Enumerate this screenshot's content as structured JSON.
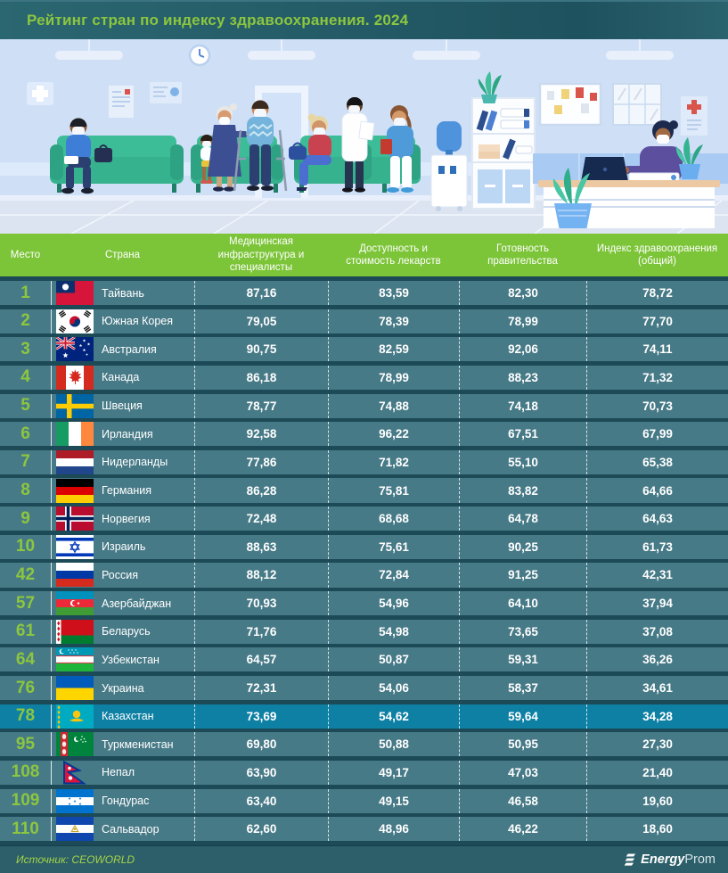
{
  "title": "Рейтинг стран по индексу здравоохранения. 2024",
  "table": {
    "columns": [
      "Место",
      "Страна",
      "Медицинская инфраструктура и специалисты",
      "Доступность и стоимость лекарств",
      "Готовность правительства",
      "Индекс здравоохранения (общий)"
    ],
    "rows": [
      {
        "rank": "1",
        "country": "Тайвань",
        "flag": "taiwan",
        "values": [
          "87,16",
          "83,59",
          "82,30",
          "78,72"
        ],
        "highlighted": false
      },
      {
        "rank": "2",
        "country": "Южная Корея",
        "flag": "south_korea",
        "values": [
          "79,05",
          "78,39",
          "78,99",
          "77,70"
        ],
        "highlighted": false
      },
      {
        "rank": "3",
        "country": "Австралия",
        "flag": "australia",
        "values": [
          "90,75",
          "82,59",
          "92,06",
          "74,11"
        ],
        "highlighted": false
      },
      {
        "rank": "4",
        "country": "Канада",
        "flag": "canada",
        "values": [
          "86,18",
          "78,99",
          "88,23",
          "71,32"
        ],
        "highlighted": false
      },
      {
        "rank": "5",
        "country": "Швеция",
        "flag": "sweden",
        "values": [
          "78,77",
          "74,88",
          "74,18",
          "70,73"
        ],
        "highlighted": false
      },
      {
        "rank": "6",
        "country": "Ирландия",
        "flag": "ireland",
        "values": [
          "92,58",
          "96,22",
          "67,51",
          "67,99"
        ],
        "highlighted": false
      },
      {
        "rank": "7",
        "country": "Нидерланды",
        "flag": "netherlands",
        "values": [
          "77,86",
          "71,82",
          "55,10",
          "65,38"
        ],
        "highlighted": false
      },
      {
        "rank": "8",
        "country": "Германия",
        "flag": "germany",
        "values": [
          "86,28",
          "75,81",
          "83,82",
          "64,66"
        ],
        "highlighted": false
      },
      {
        "rank": "9",
        "country": "Норвегия",
        "flag": "norway",
        "values": [
          "72,48",
          "68,68",
          "64,78",
          "64,63"
        ],
        "highlighted": false
      },
      {
        "rank": "10",
        "country": "Израиль",
        "flag": "israel",
        "values": [
          "88,63",
          "75,61",
          "90,25",
          "61,73"
        ],
        "highlighted": false
      },
      {
        "rank": "42",
        "country": "Россия",
        "flag": "russia",
        "values": [
          "88,12",
          "72,84",
          "91,25",
          "42,31"
        ],
        "highlighted": false
      },
      {
        "rank": "57",
        "country": "Азербайджан",
        "flag": "azerbaijan",
        "values": [
          "70,93",
          "54,96",
          "64,10",
          "37,94"
        ],
        "highlighted": false
      },
      {
        "rank": "61",
        "country": "Беларусь",
        "flag": "belarus",
        "values": [
          "71,76",
          "54,98",
          "73,65",
          "37,08"
        ],
        "highlighted": false
      },
      {
        "rank": "64",
        "country": "Узбекистан",
        "flag": "uzbekistan",
        "values": [
          "64,57",
          "50,87",
          "59,31",
          "36,26"
        ],
        "highlighted": false
      },
      {
        "rank": "76",
        "country": "Украина",
        "flag": "ukraine",
        "values": [
          "72,31",
          "54,06",
          "58,37",
          "34,61"
        ],
        "highlighted": false
      },
      {
        "rank": "78",
        "country": "Казахстан",
        "flag": "kazakhstan",
        "values": [
          "73,69",
          "54,62",
          "59,64",
          "34,28"
        ],
        "highlighted": true
      },
      {
        "rank": "95",
        "country": "Туркменистан",
        "flag": "turkmenistan",
        "values": [
          "69,80",
          "50,88",
          "50,95",
          "27,30"
        ],
        "highlighted": false
      },
      {
        "rank": "108",
        "country": "Непал",
        "flag": "nepal",
        "values": [
          "63,90",
          "49,17",
          "47,03",
          "21,40"
        ],
        "highlighted": false
      },
      {
        "rank": "109",
        "country": "Гондурас",
        "flag": "honduras",
        "values": [
          "63,40",
          "49,15",
          "46,58",
          "19,60"
        ],
        "highlighted": false
      },
      {
        "rank": "110",
        "country": "Сальвадор",
        "flag": "el_salvador",
        "values": [
          "62,60",
          "48,96",
          "46,22",
          "18,60"
        ],
        "highlighted": false
      }
    ]
  },
  "chart_data": {
    "type": "table",
    "title": "Рейтинг стран по индексу здравоохранения. 2024",
    "columns": [
      "Место",
      "Страна",
      "Медицинская инфраструктура и специалисты",
      "Доступность и стоимость лекарств",
      "Готовность правительства",
      "Индекс здравоохранения (общий)"
    ],
    "rows": [
      [
        1,
        "Тайвань",
        87.16,
        83.59,
        82.3,
        78.72
      ],
      [
        2,
        "Южная Корея",
        79.05,
        78.39,
        78.99,
        77.7
      ],
      [
        3,
        "Австралия",
        90.75,
        82.59,
        92.06,
        74.11
      ],
      [
        4,
        "Канада",
        86.18,
        78.99,
        88.23,
        71.32
      ],
      [
        5,
        "Швеция",
        78.77,
        74.88,
        74.18,
        70.73
      ],
      [
        6,
        "Ирландия",
        92.58,
        96.22,
        67.51,
        67.99
      ],
      [
        7,
        "Нидерланды",
        77.86,
        71.82,
        55.1,
        65.38
      ],
      [
        8,
        "Германия",
        86.28,
        75.81,
        83.82,
        64.66
      ],
      [
        9,
        "Норвегия",
        72.48,
        68.68,
        64.78,
        64.63
      ],
      [
        10,
        "Израиль",
        88.63,
        75.61,
        90.25,
        61.73
      ],
      [
        42,
        "Россия",
        88.12,
        72.84,
        91.25,
        42.31
      ],
      [
        57,
        "Азербайджан",
        70.93,
        54.96,
        64.1,
        37.94
      ],
      [
        61,
        "Беларусь",
        71.76,
        54.98,
        73.65,
        37.08
      ],
      [
        64,
        "Узбекистан",
        64.57,
        50.87,
        59.31,
        36.26
      ],
      [
        76,
        "Украина",
        72.31,
        54.06,
        58.37,
        34.61
      ],
      [
        78,
        "Казахстан",
        73.69,
        54.62,
        59.64,
        34.28
      ],
      [
        95,
        "Туркменистан",
        69.8,
        50.88,
        50.95,
        27.3
      ],
      [
        108,
        "Непал",
        63.9,
        49.17,
        47.03,
        21.4
      ],
      [
        109,
        "Гондурас",
        63.4,
        49.15,
        46.58,
        19.6
      ],
      [
        110,
        "Сальвадор",
        62.6,
        48.96,
        46.22,
        18.6
      ]
    ],
    "highlighted_row": "Казахстан"
  },
  "footer": {
    "source": "Источник: CEOWORLD",
    "brand_bold": "Energy",
    "brand_light": "Prom"
  },
  "colors": {
    "accent_green": "#7cc438",
    "title_green": "#8cc63f",
    "row_teal": "#477a87",
    "highlight_teal": "#0e80a4",
    "background": "#1c4a56",
    "footer_bg": "#2c5f6a"
  }
}
